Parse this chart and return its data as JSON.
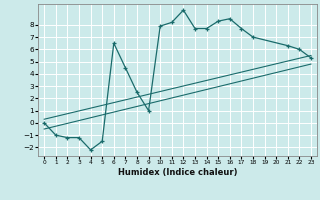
{
  "xlabel": "Humidex (Indice chaleur)",
  "ylabel": "",
  "bg_color": "#cceaea",
  "line_color": "#1a6b6b",
  "grid_color": "#ffffff",
  "curve_x": [
    0,
    1,
    2,
    3,
    4,
    5,
    6,
    7,
    8,
    9,
    10,
    11,
    12,
    13,
    14,
    15,
    16,
    17,
    18,
    21,
    22,
    23
  ],
  "curve_y": [
    0,
    -1,
    -1.2,
    -1.2,
    -2.2,
    -1.5,
    6.5,
    4.5,
    2.5,
    1.0,
    7.9,
    8.2,
    9.2,
    7.7,
    7.7,
    8.3,
    8.5,
    7.7,
    7.0,
    6.3,
    6.0,
    5.3
  ],
  "line1_x": [
    0,
    23
  ],
  "line1_y": [
    -0.5,
    4.8
  ],
  "line2_x": [
    0,
    23
  ],
  "line2_y": [
    0.3,
    5.5
  ],
  "xlim": [
    -0.5,
    23.5
  ],
  "ylim": [
    -2.7,
    9.7
  ],
  "xticks": [
    0,
    1,
    2,
    3,
    4,
    5,
    6,
    7,
    8,
    9,
    10,
    11,
    12,
    13,
    14,
    15,
    16,
    17,
    18,
    19,
    20,
    21,
    22,
    23
  ],
  "yticks": [
    -2,
    -1,
    0,
    1,
    2,
    3,
    4,
    5,
    6,
    7,
    8
  ]
}
